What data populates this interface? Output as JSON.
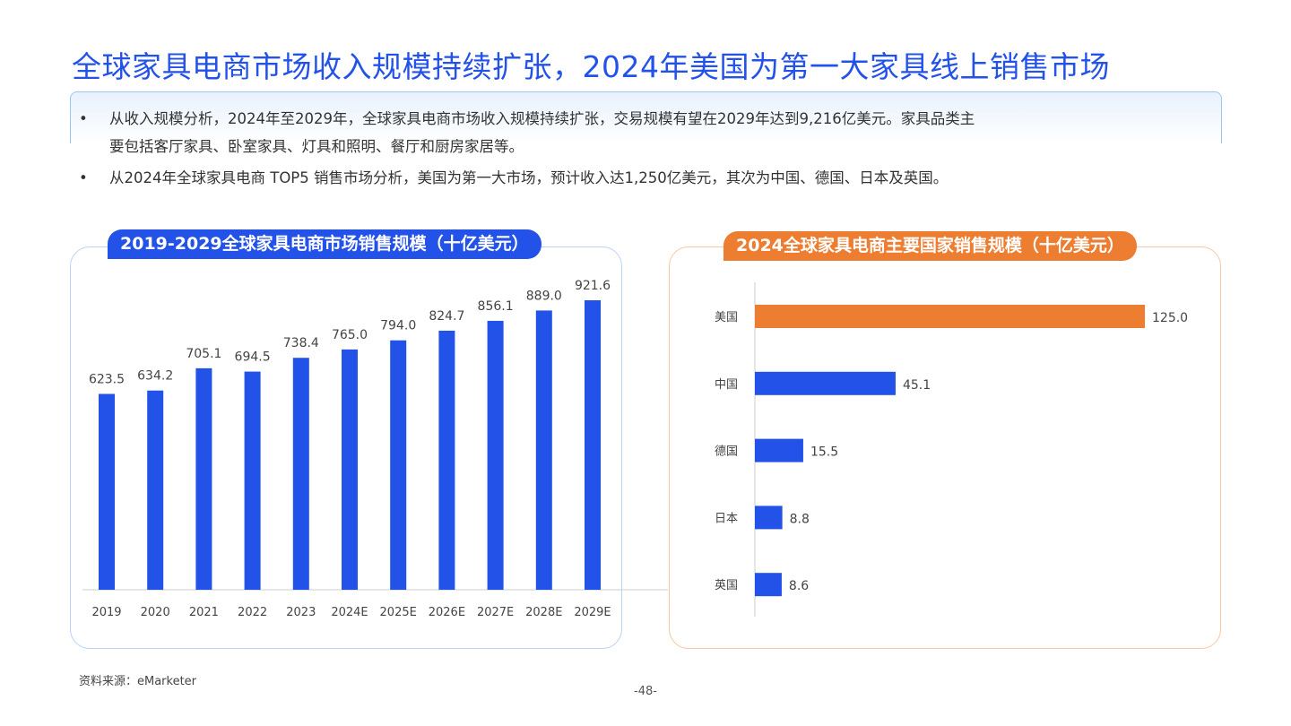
{
  "title": "全球家具电商市场收入规模持续扩张，2024年美国为第一大家具线上销售市场",
  "bullets": [
    {
      "line1": "从收入规模分析，2024年至2029年，全球家具电商市场收入规模持续扩张，交易规模有望在2029年达到9,216亿美元。家具品类主",
      "line2": "要包括客厅家具、卧室家具、灯具和照明、餐厅和厨房家居等。"
    },
    {
      "line1": "从2024年全球家具电商 TOP5 销售市场分析，美国为第一大市场，预计收入达1,250亿美元，其次为中国、德国、日本及英国。"
    }
  ],
  "bullet_symbol": "•",
  "chart_data": [
    {
      "type": "bar",
      "orientation": "vertical",
      "title": "2019-2029全球家具电商市场销售规模（十亿美元）",
      "categories": [
        "2019",
        "2020",
        "2021",
        "2022",
        "2023",
        "2024E",
        "2025E",
        "2026E",
        "2027E",
        "2028E",
        "2029E"
      ],
      "values": [
        623.5,
        634.2,
        705.1,
        694.5,
        738.4,
        765.0,
        794.0,
        824.7,
        856.1,
        889.0,
        921.6
      ],
      "color": "#2352e8",
      "ylim": [
        0,
        921.6
      ],
      "grid": false
    },
    {
      "type": "bar",
      "orientation": "horizontal",
      "title": "2024全球家具电商主要国家销售规模（十亿美元）",
      "categories": [
        "美国",
        "中国",
        "德国",
        "日本",
        "英国"
      ],
      "values": [
        125.0,
        45.1,
        15.5,
        8.8,
        8.6
      ],
      "colors": [
        "#ed7d31",
        "#2352e8",
        "#2352e8",
        "#2352e8",
        "#2352e8"
      ],
      "grid": false
    }
  ],
  "source": "资料来源：eMarketer",
  "page_number": "-48-"
}
